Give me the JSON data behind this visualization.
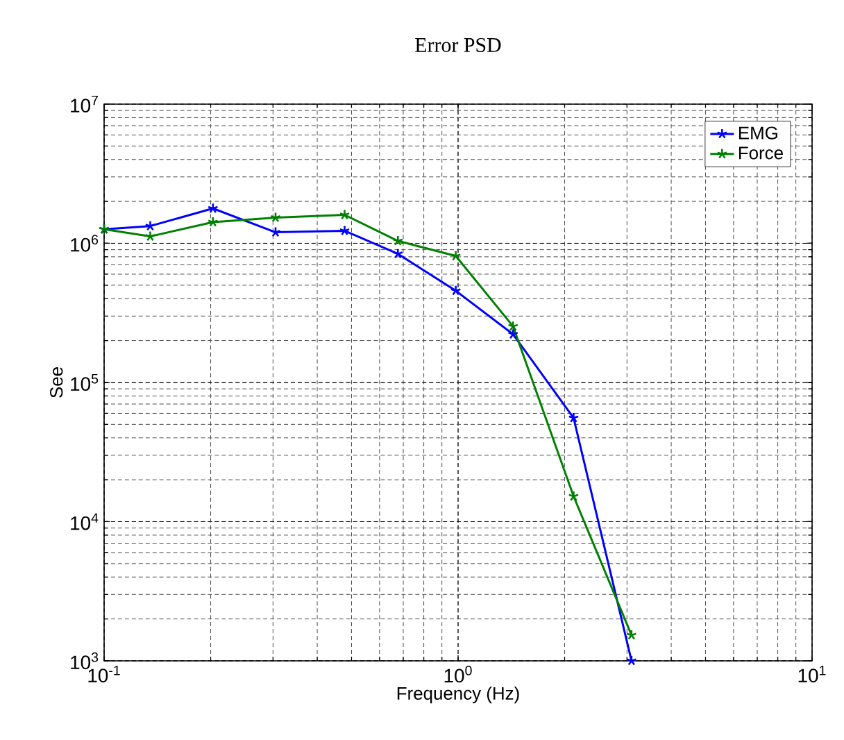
{
  "chart_data": {
    "type": "line",
    "title": "Error PSD",
    "xlabel": "Frequency (Hz)",
    "ylabel": "See",
    "x": [
      0.1,
      0.135,
      0.203,
      0.305,
      0.478,
      0.676,
      0.985,
      1.43,
      2.12,
      3.09
    ],
    "series": [
      {
        "name": "EMG",
        "color": "#0000ff",
        "values": [
          1260000,
          1330000,
          1780000,
          1200000,
          1230000,
          840000,
          456000,
          222000,
          55600,
          1000
        ]
      },
      {
        "name": "Force",
        "color": "#008000",
        "values": [
          1260000,
          1120000,
          1420000,
          1530000,
          1600000,
          1040000,
          810000,
          253000,
          15200,
          1530
        ]
      }
    ],
    "log": "xy",
    "xlim": [
      0.1,
      10
    ],
    "ylim": [
      1000,
      10000000
    ],
    "xticks": [
      {
        "value": 0.1,
        "label": "10$^{-1}$"
      },
      {
        "value": 1,
        "label": "10$^{0}$"
      },
      {
        "value": 10,
        "label": "10$^{1}$"
      }
    ],
    "yticks": [
      {
        "value": 1000,
        "label": "10$^{3}$"
      },
      {
        "value": 10000,
        "label": "10$^{4}$"
      },
      {
        "value": 100000,
        "label": "10$^{5}$"
      },
      {
        "value": 1000000,
        "label": "10$^{6}$"
      },
      {
        "value": 10000000,
        "label": "10$^{7}$"
      }
    ],
    "grid": true,
    "legend": "top right",
    "marker": "cross",
    "line_style": "solid"
  }
}
